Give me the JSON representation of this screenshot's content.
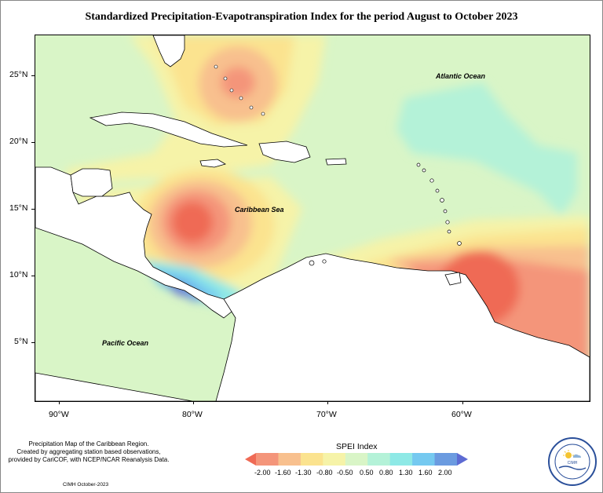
{
  "title": "Standardized Precipitation-Evapotranspiration Index for the period August to October 2023",
  "map": {
    "lat_ticks": [
      "25°N",
      "20°N",
      "15°N",
      "10°N",
      "5°N"
    ],
    "lon_ticks": [
      "90°W",
      "80°W",
      "70°W",
      "60°W"
    ],
    "labels": {
      "atlantic": "Atlantic Ocean",
      "caribbean": "Caribbean Sea",
      "pacific": "Pacific Ocean"
    }
  },
  "legend": {
    "title": "SPEI Index",
    "values": [
      "-2.00",
      "-1.60",
      "-1.30",
      "-0.80",
      "-0.50",
      "0.50",
      "0.80",
      "1.30",
      "1.60",
      "2.00"
    ],
    "colors": [
      "#ef6a55",
      "#f4957a",
      "#f8c08e",
      "#fbe38f",
      "#f6f3a8",
      "#d9f5c7",
      "#b4f2d8",
      "#8ee9e6",
      "#75c9f0",
      "#6b9be0",
      "#5d6bd3"
    ]
  },
  "caption": {
    "line1": "Precipitation Map of the Caribbean Region.",
    "line2": "Created by aggregating station based observations,",
    "line3": "provided by CariCOF, with NCEP/NCAR Reanalysis Data.",
    "credit": "CIMH October-2023"
  },
  "logo": {
    "text": "CIMH"
  }
}
